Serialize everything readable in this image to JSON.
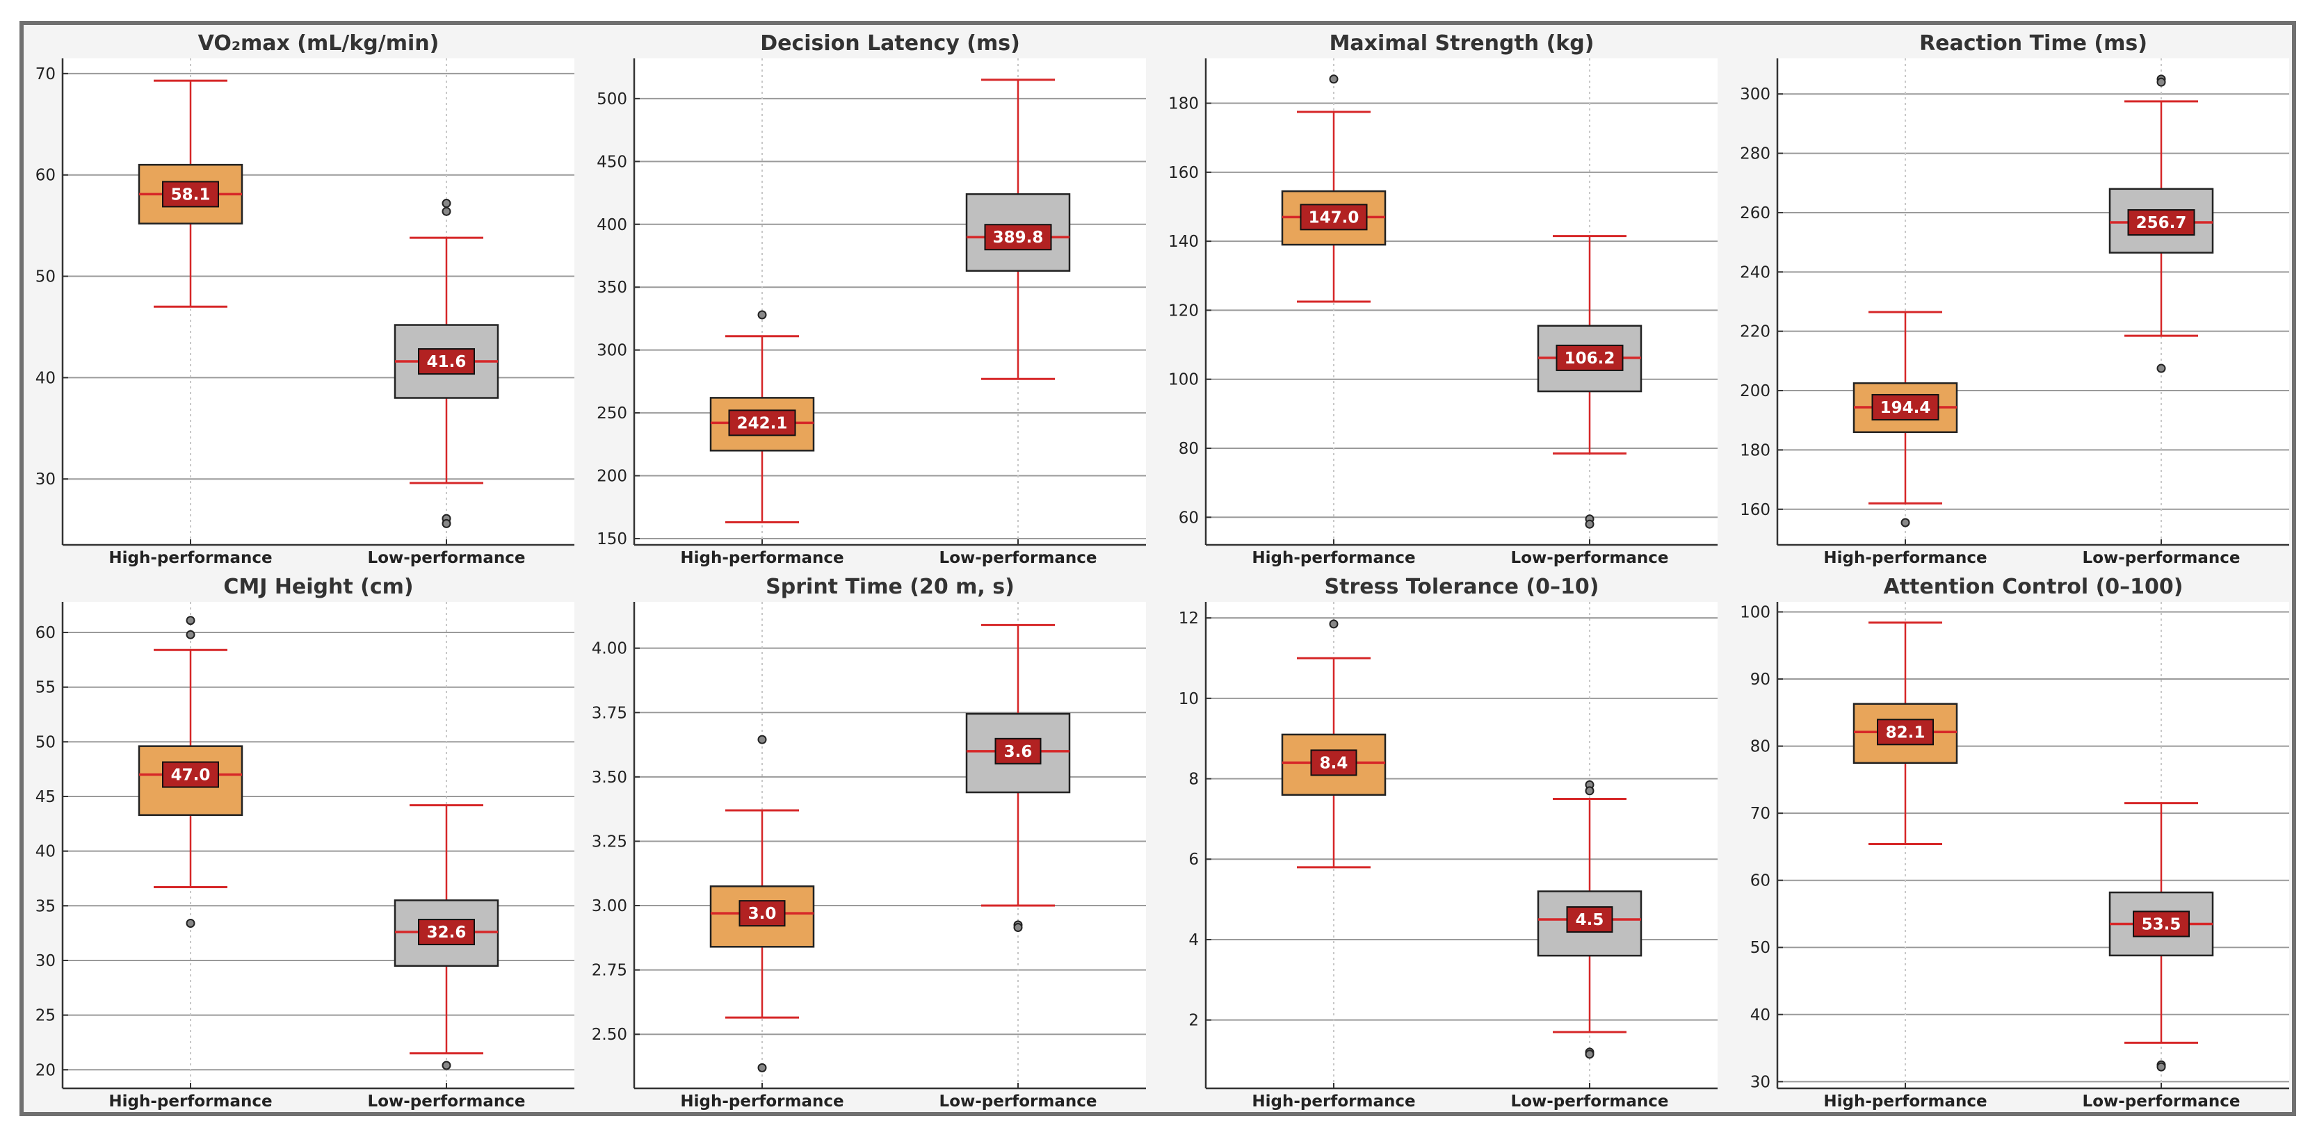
{
  "colors": {
    "high_box": "#E8A55A",
    "low_box": "#BFBFBF",
    "whisker": "#D62728",
    "median_label_bg": "#B22222",
    "grid": "#9a9a9a",
    "vgrid": "#c8c8c8",
    "panel_bg": "#ffffff",
    "figure_bg": "#f4f4f4",
    "border": "#707070"
  },
  "categories": [
    "High-performance",
    "Low-performance"
  ],
  "chart_data": [
    {
      "type": "box",
      "title": "VO₂max (mL/kg/min)",
      "ylim": [
        23.5,
        71.5
      ],
      "yticks": [
        30,
        40,
        50,
        60,
        70
      ],
      "categories": [
        "High-performance",
        "Low-performance"
      ],
      "series": [
        {
          "q1": 55.2,
          "median": 58.1,
          "q3": 61.0,
          "whislo": 47.0,
          "whishi": 69.3,
          "outliers": []
        },
        {
          "q1": 38.0,
          "median": 41.6,
          "q3": 45.2,
          "whislo": 29.6,
          "whishi": 53.8,
          "outliers": [
            57.2,
            56.4,
            26.1,
            25.6
          ]
        }
      ]
    },
    {
      "type": "box",
      "title": "Decision Latency (ms)",
      "ylim": [
        145,
        532
      ],
      "yticks": [
        150,
        200,
        250,
        300,
        350,
        400,
        450,
        500
      ],
      "categories": [
        "High-performance",
        "Low-performance"
      ],
      "series": [
        {
          "q1": 220,
          "median": 242.1,
          "q3": 262,
          "whislo": 163,
          "whishi": 311,
          "outliers": [
            328
          ]
        },
        {
          "q1": 363,
          "median": 389.8,
          "q3": 424,
          "whislo": 277,
          "whishi": 515,
          "outliers": []
        }
      ]
    },
    {
      "type": "box",
      "title": "Maximal Strength (kg)",
      "ylim": [
        52,
        193
      ],
      "yticks": [
        60,
        80,
        100,
        120,
        140,
        160,
        180
      ],
      "categories": [
        "High-performance",
        "Low-performance"
      ],
      "series": [
        {
          "q1": 139,
          "median": 147.0,
          "q3": 154.5,
          "whislo": 122.5,
          "whishi": 177.5,
          "outliers": [
            187
          ]
        },
        {
          "q1": 96.5,
          "median": 106.2,
          "q3": 115.5,
          "whislo": 78.5,
          "whishi": 141.5,
          "outliers": [
            59.5,
            58
          ]
        }
      ]
    },
    {
      "type": "box",
      "title": "Reaction Time (ms)",
      "ylim": [
        148,
        312
      ],
      "yticks": [
        160,
        180,
        200,
        220,
        240,
        260,
        280,
        300
      ],
      "categories": [
        "High-performance",
        "Low-performance"
      ],
      "series": [
        {
          "q1": 186,
          "median": 194.4,
          "q3": 202.5,
          "whislo": 162,
          "whishi": 226.5,
          "outliers": [
            155.5
          ]
        },
        {
          "q1": 246.5,
          "median": 256.7,
          "q3": 268,
          "whislo": 218.5,
          "whishi": 297.5,
          "outliers": [
            305,
            304,
            207.5
          ]
        }
      ]
    },
    {
      "type": "box",
      "title": "CMJ Height (cm)",
      "ylim": [
        18.3,
        62.8
      ],
      "yticks": [
        20,
        25,
        30,
        35,
        40,
        45,
        50,
        55,
        60
      ],
      "categories": [
        "High-performance",
        "Low-performance"
      ],
      "series": [
        {
          "q1": 43.3,
          "median": 47.0,
          "q3": 49.6,
          "whislo": 36.7,
          "whishi": 58.4,
          "outliers": [
            61.1,
            59.8,
            33.4
          ]
        },
        {
          "q1": 29.5,
          "median": 32.6,
          "q3": 35.5,
          "whislo": 21.5,
          "whishi": 44.2,
          "outliers": [
            20.4
          ]
        }
      ]
    },
    {
      "type": "box",
      "title": "Sprint Time (20 m, s)",
      "ylim": [
        2.29,
        4.18
      ],
      "yticks": [
        2.5,
        2.75,
        3.0,
        3.25,
        3.5,
        3.75,
        4.0
      ],
      "categories": [
        "High-performance",
        "Low-performance"
      ],
      "series": [
        {
          "q1": 2.84,
          "median": 2.97,
          "q3": 3.075,
          "whislo": 2.565,
          "whishi": 3.37,
          "outliers": [
            3.645,
            2.37
          ]
        },
        {
          "q1": 3.44,
          "median": 3.6,
          "q3": 3.745,
          "whislo": 3.0,
          "whishi": 4.09,
          "outliers": [
            2.925,
            2.915
          ]
        }
      ],
      "median_labels": [
        "3.0",
        "3.6"
      ]
    },
    {
      "type": "box",
      "title": "Stress Tolerance (0–10)",
      "ylim": [
        0.3,
        12.4
      ],
      "yticks": [
        2,
        4,
        6,
        8,
        10,
        12
      ],
      "categories": [
        "High-performance",
        "Low-performance"
      ],
      "series": [
        {
          "q1": 7.6,
          "median": 8.4,
          "q3": 9.1,
          "whislo": 5.8,
          "whishi": 11.0,
          "outliers": [
            11.85
          ]
        },
        {
          "q1": 3.6,
          "median": 4.5,
          "q3": 5.2,
          "whislo": 1.7,
          "whishi": 7.5,
          "outliers": [
            7.85,
            7.7,
            1.2,
            1.15
          ]
        }
      ]
    },
    {
      "type": "box",
      "title": "Attention Control (0–100)",
      "ylim": [
        29,
        101.5
      ],
      "yticks": [
        30,
        40,
        50,
        60,
        70,
        80,
        90,
        100
      ],
      "categories": [
        "High-performance",
        "Low-performance"
      ],
      "series": [
        {
          "q1": 77.5,
          "median": 82.1,
          "q3": 86.3,
          "whislo": 65.4,
          "whishi": 98.4,
          "outliers": []
        },
        {
          "q1": 48.8,
          "median": 53.5,
          "q3": 58.2,
          "whislo": 35.8,
          "whishi": 71.5,
          "outliers": [
            32.5,
            32.2
          ]
        }
      ]
    }
  ]
}
